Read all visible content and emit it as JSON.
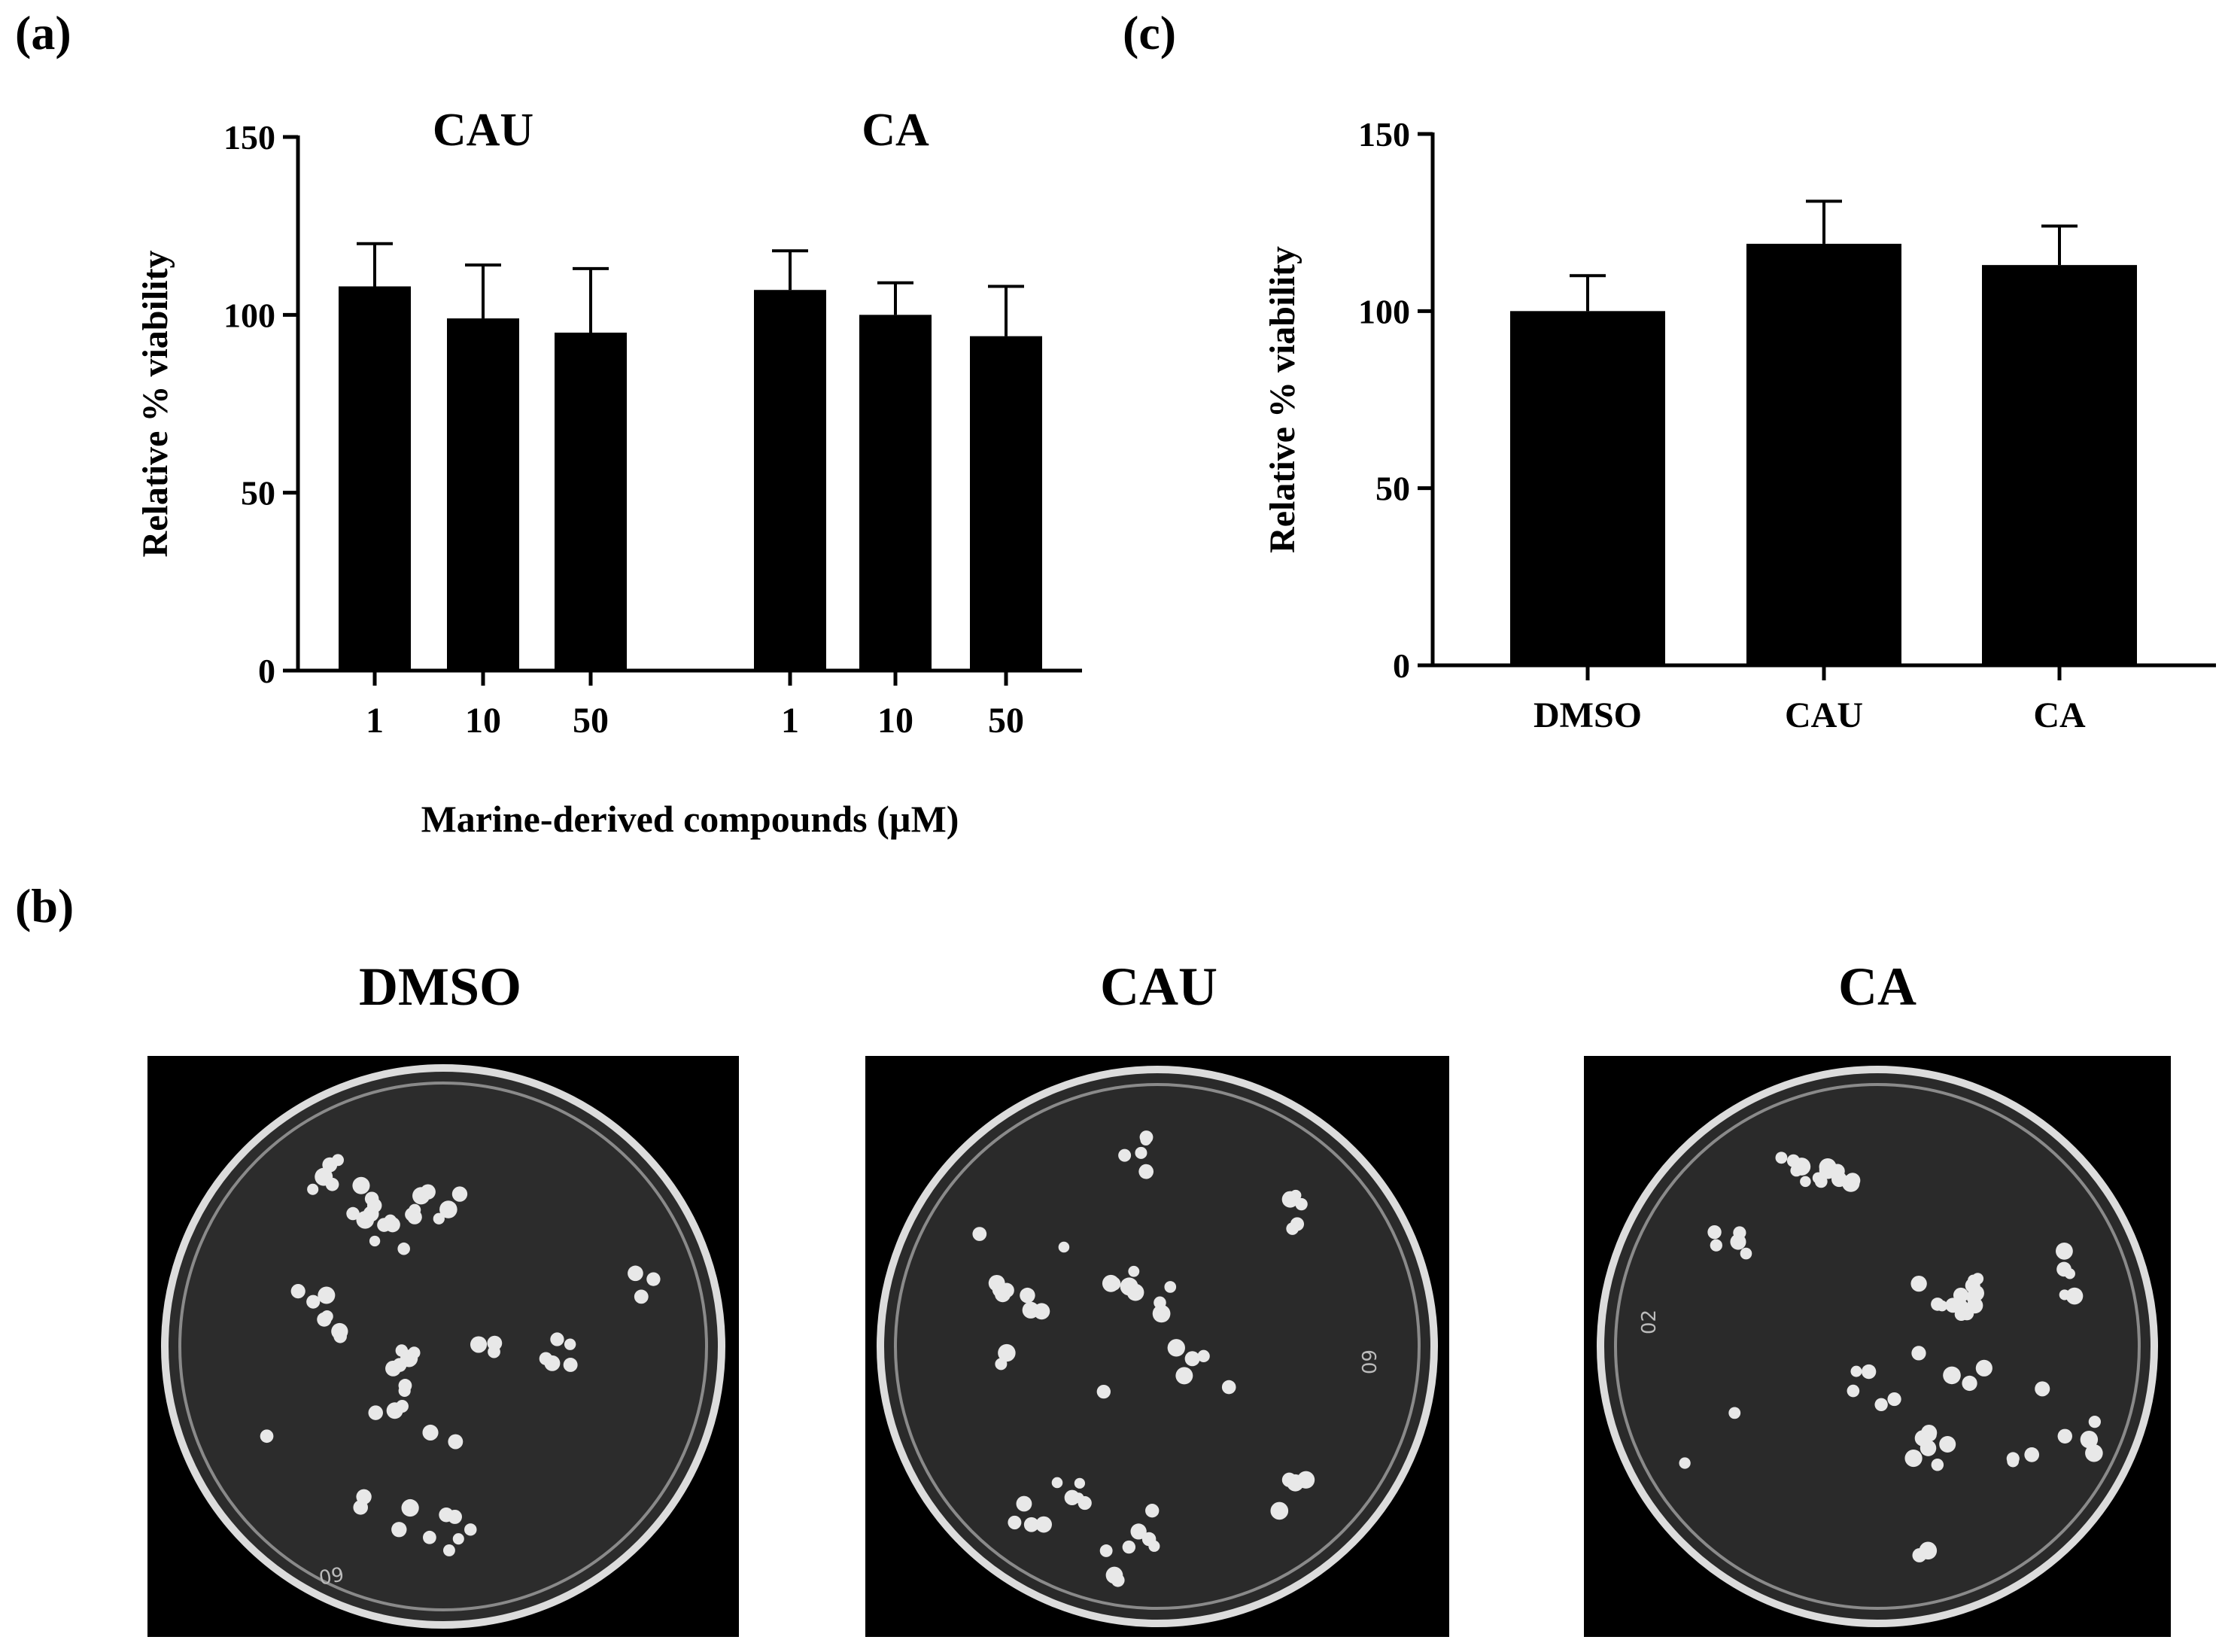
{
  "panels": {
    "a": "(a)",
    "b": "(b)",
    "c": "(c)"
  },
  "chart_data": [
    {
      "id": "a",
      "type": "bar",
      "groups": [
        {
          "name": "CAU",
          "categories": [
            "1",
            "10",
            "50"
          ],
          "values": [
            108,
            99,
            95
          ],
          "errors": [
            12,
            15,
            18
          ]
        },
        {
          "name": "CA",
          "categories": [
            "1",
            "10",
            "50"
          ],
          "values": [
            107,
            100,
            94
          ],
          "errors": [
            11,
            9,
            14
          ]
        }
      ],
      "xlabel": "Marine-derived compounds (µM)",
      "ylabel": "Relative % viability",
      "ylim": [
        0,
        150
      ],
      "yticks": [
        "0",
        "50",
        "100",
        "150"
      ],
      "grid": false,
      "color": "#000000"
    },
    {
      "id": "c",
      "type": "bar",
      "categories": [
        "DMSO",
        "CAU",
        "CA"
      ],
      "values": [
        100,
        119,
        113
      ],
      "errors": [
        10,
        12,
        11
      ],
      "xlabel": "",
      "ylabel": "Relative % viability",
      "ylim": [
        0,
        150
      ],
      "yticks": [
        "0",
        "50",
        "100",
        "150"
      ],
      "grid": false,
      "color": "#000000"
    }
  ],
  "plates": [
    {
      "title": "DMSO",
      "plate_label": "60"
    },
    {
      "title": "CAU",
      "plate_label": "60"
    },
    {
      "title": "CA",
      "plate_label": "02"
    }
  ]
}
